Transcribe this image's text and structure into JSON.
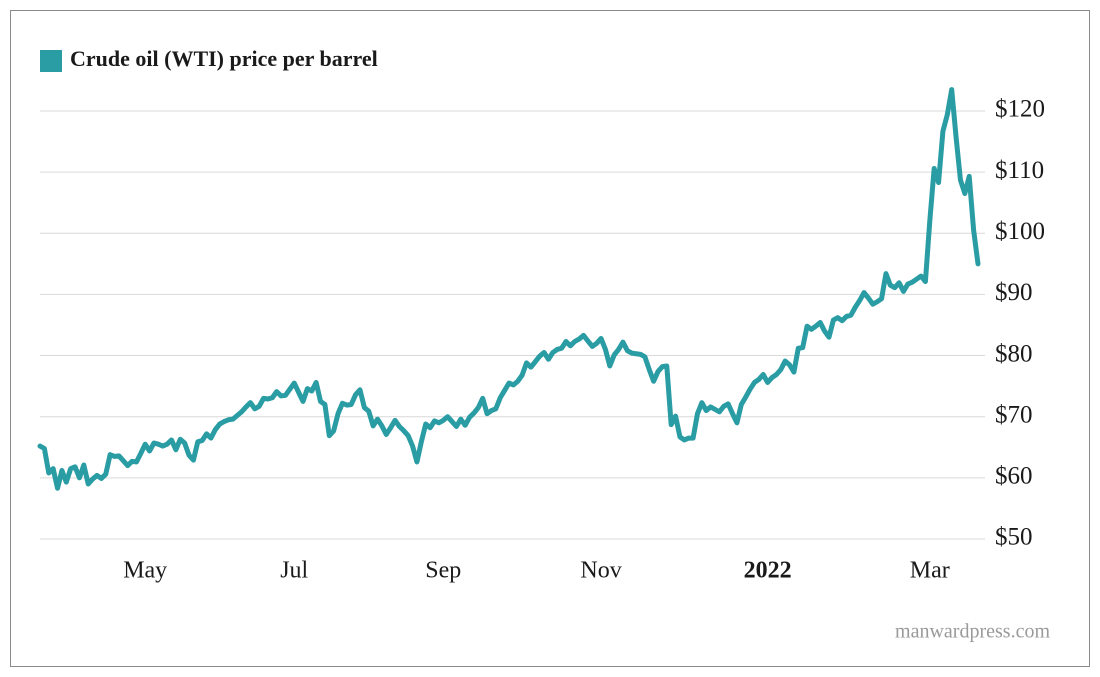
{
  "chart_data": {
    "type": "line",
    "source": "manwardpress.com",
    "categories": [
      null,
      null,
      null,
      null,
      null,
      null,
      null,
      null,
      null,
      null,
      null,
      null,
      null,
      null,
      null,
      null,
      null,
      null,
      null,
      null,
      null,
      null,
      null,
      null,
      "May",
      null,
      null,
      null,
      null,
      null,
      null,
      null,
      null,
      null,
      null,
      null,
      null,
      null,
      null,
      null,
      null,
      null,
      null,
      null,
      null,
      null,
      null,
      null,
      null,
      null,
      null,
      null,
      null,
      null,
      null,
      null,
      null,
      null,
      "Jul",
      null,
      null,
      null,
      null,
      null,
      null,
      null,
      null,
      null,
      null,
      null,
      null,
      null,
      null,
      null,
      null,
      null,
      null,
      null,
      null,
      null,
      null,
      null,
      null,
      null,
      null,
      null,
      null,
      null,
      null,
      null,
      null,
      null,
      "Sep",
      null,
      null,
      null,
      null,
      null,
      null,
      null,
      null,
      null,
      null,
      null,
      null,
      null,
      null,
      null,
      null,
      null,
      null,
      null,
      null,
      null,
      null,
      null,
      null,
      null,
      null,
      null,
      null,
      null,
      null,
      null,
      null,
      null,
      null,
      null,
      "Nov",
      null,
      null,
      null,
      null,
      null,
      null,
      null,
      null,
      null,
      null,
      null,
      null,
      null,
      null,
      null,
      null,
      null,
      null,
      null,
      null,
      null,
      null,
      null,
      null,
      null,
      null,
      null,
      null,
      null,
      null,
      null,
      null,
      null,
      null,
      null,
      null,
      null,
      "2022",
      null,
      null,
      null,
      null,
      null,
      null,
      null,
      null,
      null,
      null,
      null,
      null,
      null,
      null,
      null,
      null,
      null,
      null,
      null,
      null,
      null,
      null,
      null,
      null,
      null,
      null,
      null,
      null,
      null,
      null,
      null,
      null,
      null,
      null,
      null,
      null,
      "Mar",
      null,
      null,
      null,
      null,
      null,
      null,
      null,
      null,
      null,
      null,
      null
    ],
    "series": [
      {
        "name": "Crude oil (WTI) price per barrel",
        "color": "#2a9ca4",
        "values": [
          65.2,
          64.8,
          60.8,
          61.5,
          58.3,
          61.2,
          59.3,
          61.5,
          61.8,
          60,
          62.1,
          59,
          59.8,
          60.4,
          59.9,
          60.6,
          63.8,
          63.5,
          63.6,
          62.8,
          62,
          62.7,
          62.6,
          64,
          65.5,
          64.4,
          65.7,
          65.5,
          65.2,
          65.5,
          66.2,
          64.6,
          66.3,
          65.7,
          63.7,
          62.9,
          65.9,
          66.1,
          67.2,
          66.5,
          67.9,
          68.8,
          69.2,
          69.5,
          69.6,
          70.2,
          70.8,
          71.6,
          72.3,
          71.3,
          71.7,
          73,
          72.9,
          73.1,
          74.1,
          73.4,
          73.5,
          74.5,
          75.5,
          74,
          72.5,
          74.6,
          74.2,
          75.6,
          72.5,
          72,
          66.9,
          67.7,
          70.5,
          72.2,
          71.9,
          72,
          73.6,
          74.4,
          71.5,
          70.9,
          68.5,
          69.6,
          68.5,
          67.1,
          68.2,
          69.4,
          68.4,
          67.7,
          66.9,
          65.2,
          62.6,
          65.9,
          68.8,
          68.2,
          69.3,
          69,
          69.4,
          70,
          69.2,
          68.4,
          69.6,
          68.6,
          69.9,
          70.6,
          71.5,
          73,
          70.5,
          71,
          71.3,
          73.1,
          74.3,
          75.5,
          75.2,
          75.8,
          76.8,
          78.8,
          78.1,
          79,
          79.9,
          80.5,
          79.4,
          80.5,
          81,
          81.2,
          82.3,
          81.6,
          82.3,
          82.7,
          83.3,
          82.4,
          81.5,
          82,
          82.8,
          81,
          78.3,
          80.1,
          81,
          82.2,
          80.8,
          80.4,
          80.3,
          80.2,
          79.8,
          77.7,
          75.8,
          77.4,
          78.2,
          78.3,
          68.7,
          70.1,
          66.7,
          66.2,
          66.5,
          66.5,
          70.5,
          72.3,
          71,
          71.6,
          71.2,
          70.8,
          71.7,
          72.1,
          70.5,
          69,
          72,
          73.2,
          74.5,
          75.6,
          76.1,
          76.9,
          75.6,
          76.4,
          76.9,
          77.7,
          79.1,
          78.5,
          77.3,
          81.2,
          81.3,
          84.8,
          84.3,
          84.8,
          85.4,
          84,
          83,
          85.8,
          86.2,
          85.7,
          86.4,
          86.6,
          87.9,
          89,
          90.3,
          89.4,
          88.4,
          88.8,
          89.3,
          93.4,
          91.5,
          91.1,
          91.9,
          90.5,
          91.7,
          92,
          92.5,
          93,
          92.1,
          102,
          110.6,
          108.3,
          116.7,
          119.4,
          123.5,
          115.7,
          108.7,
          106.5,
          109.3,
          100.5,
          95
        ]
      }
    ],
    "ylim": [
      50,
      125
    ],
    "yticks": [
      {
        "value": 50,
        "label": "$50"
      },
      {
        "value": 60,
        "label": "$60"
      },
      {
        "value": 70,
        "label": "$70"
      },
      {
        "value": 80,
        "label": "$80"
      },
      {
        "value": 90,
        "label": "$90"
      },
      {
        "value": 100,
        "label": "$100"
      },
      {
        "value": 110,
        "label": "$110"
      },
      {
        "value": 120,
        "label": "$120"
      }
    ],
    "grid": true,
    "legend": "top-left"
  }
}
